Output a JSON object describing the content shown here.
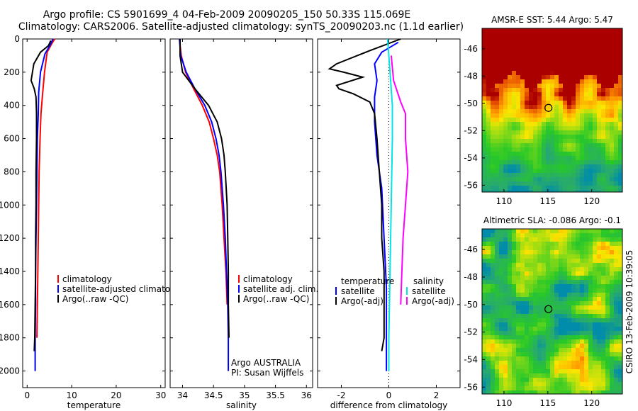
{
  "header": {
    "line1": "Argo profile: CS 5901699_4 04-Feb-2009 20090205_150 50.33S 115.069E",
    "line2": "Climatology: CARS2006. Satellite-adjusted climatology: synTS_20090203.nc (1.1d earlier)"
  },
  "side_label": "CSIRO 13-Feb-2009 10:39:05",
  "argo_note": {
    "line1": "Argo AUSTRALIA",
    "line2": "PI: Susan Wijffels"
  },
  "colors": {
    "climatology": "#ff0000",
    "satellite": "#0000ff",
    "argo": "#000000",
    "sat_salinity": "#00e5e5",
    "argo_salinity": "#ff00ff"
  },
  "chart_data": [
    {
      "type": "line",
      "id": "temperature",
      "xlabel": "temperature",
      "xlim": [
        -1,
        31
      ],
      "ylim": [
        0,
        2100
      ],
      "y_reversed": true,
      "xticks": [
        0,
        10,
        20,
        30
      ],
      "yticks": [
        0,
        200,
        400,
        600,
        800,
        1000,
        1200,
        1400,
        1600,
        1800,
        2000
      ],
      "legend": [
        "climatology",
        "satellite-adjusted climatology",
        "Argo(..raw -QC)"
      ],
      "series": [
        {
          "name": "climatology",
          "color": "#ff0000",
          "points": [
            [
              6.2,
              0
            ],
            [
              5.5,
              30
            ],
            [
              4.5,
              80
            ],
            [
              3.9,
              200
            ],
            [
              3.5,
              320
            ],
            [
              3.1,
              450
            ],
            [
              2.9,
              600
            ],
            [
              2.7,
              800
            ],
            [
              2.6,
              1000
            ],
            [
              2.5,
              1200
            ],
            [
              2.4,
              1400
            ],
            [
              2.3,
              1600
            ],
            [
              2.2,
              1800
            ]
          ]
        },
        {
          "name": "satellite-adjusted climatology",
          "color": "#0000ff",
          "points": [
            [
              5.8,
              0
            ],
            [
              5.3,
              30
            ],
            [
              4.0,
              90
            ],
            [
              3.0,
              200
            ],
            [
              2.6,
              320
            ],
            [
              2.5,
              450
            ],
            [
              2.3,
              600
            ],
            [
              2.2,
              800
            ],
            [
              2.1,
              1000
            ],
            [
              2.0,
              1200
            ],
            [
              1.9,
              1400
            ],
            [
              1.9,
              1600
            ],
            [
              1.8,
              1800
            ],
            [
              1.8,
              2000
            ]
          ]
        },
        {
          "name": "Argo(..raw -QC)",
          "color": "#000000",
          "points": [
            [
              5.3,
              10
            ],
            [
              4.8,
              40
            ],
            [
              3.0,
              80
            ],
            [
              1.5,
              150
            ],
            [
              0.9,
              250
            ],
            [
              1.6,
              300
            ],
            [
              2.0,
              350
            ],
            [
              2.1,
              450
            ],
            [
              2.1,
              600
            ],
            [
              2.0,
              800
            ],
            [
              2.0,
              1000
            ],
            [
              1.9,
              1200
            ],
            [
              1.9,
              1400
            ],
            [
              1.8,
              1600
            ],
            [
              1.7,
              1800
            ],
            [
              1.6,
              1880
            ]
          ]
        }
      ]
    },
    {
      "type": "line",
      "id": "salinity",
      "xlabel": "salinity",
      "xlim": [
        33.8,
        36.1
      ],
      "ylim": [
        0,
        2100
      ],
      "y_reversed": true,
      "xticks": [
        34,
        34.5,
        35,
        35.5,
        36
      ],
      "legend": [
        "climatology",
        "satellite adj. clim.",
        "Argo(..raw -QC)"
      ],
      "series": [
        {
          "name": "climatology",
          "color": "#ff0000",
          "points": [
            [
              33.95,
              0
            ],
            [
              33.98,
              100
            ],
            [
              34.05,
              200
            ],
            [
              34.18,
              300
            ],
            [
              34.32,
              400
            ],
            [
              34.43,
              500
            ],
            [
              34.5,
              600
            ],
            [
              34.56,
              700
            ],
            [
              34.6,
              800
            ],
            [
              34.64,
              1000
            ],
            [
              34.67,
              1200
            ],
            [
              34.7,
              1400
            ],
            [
              34.72,
              1600
            ]
          ]
        },
        {
          "name": "satellite adj. clim.",
          "color": "#0000ff",
          "points": [
            [
              33.95,
              0
            ],
            [
              33.97,
              100
            ],
            [
              34.06,
              200
            ],
            [
              34.2,
              300
            ],
            [
              34.36,
              400
            ],
            [
              34.47,
              500
            ],
            [
              34.54,
              600
            ],
            [
              34.59,
              700
            ],
            [
              34.62,
              800
            ],
            [
              34.66,
              1000
            ],
            [
              34.69,
              1200
            ],
            [
              34.71,
              1400
            ],
            [
              34.73,
              1600
            ],
            [
              34.74,
              1800
            ],
            [
              34.74,
              2000
            ]
          ]
        },
        {
          "name": "Argo(..raw -QC)",
          "color": "#000000",
          "points": [
            [
              33.96,
              0
            ],
            [
              33.96,
              100
            ],
            [
              34.0,
              200
            ],
            [
              34.2,
              300
            ],
            [
              34.42,
              400
            ],
            [
              34.56,
              500
            ],
            [
              34.63,
              600
            ],
            [
              34.67,
              700
            ],
            [
              34.69,
              800
            ],
            [
              34.72,
              1000
            ],
            [
              34.73,
              1200
            ],
            [
              34.74,
              1400
            ],
            [
              34.74,
              1600
            ],
            [
              34.75,
              1800
            ]
          ]
        }
      ]
    },
    {
      "type": "line",
      "id": "difference",
      "xlabel": "difference from climatology",
      "xlim": [
        -3,
        3
      ],
      "ylim": [
        0,
        2100
      ],
      "y_reversed": true,
      "xticks": [
        -2,
        0,
        2
      ],
      "legend": [
        "temperature",
        "satellite",
        "Argo(-adj)",
        "salinity",
        "satellite",
        "Argo(-adj)"
      ],
      "series": [
        {
          "name": "temperature satellite",
          "color": "#0000ff",
          "points": [
            [
              0.4,
              20
            ],
            [
              -0.3,
              80
            ],
            [
              -0.6,
              150
            ],
            [
              -0.5,
              250
            ],
            [
              -0.6,
              350
            ],
            [
              -0.6,
              500
            ],
            [
              -0.5,
              700
            ],
            [
              -0.3,
              900
            ],
            [
              -0.2,
              1200
            ],
            [
              -0.1,
              1500
            ],
            [
              -0.1,
              1800
            ],
            [
              -0.1,
              2000
            ]
          ]
        },
        {
          "name": "temperature Argo(-adj)",
          "color": "#000000",
          "points": [
            [
              0.5,
              0
            ],
            [
              -0.8,
              70
            ],
            [
              -2.2,
              150
            ],
            [
              -2.5,
              180
            ],
            [
              -1.9,
              200
            ],
            [
              -1.1,
              230
            ],
            [
              -2.2,
              280
            ],
            [
              -2.1,
              300
            ],
            [
              -1.5,
              330
            ],
            [
              -0.8,
              380
            ],
            [
              -0.6,
              450
            ],
            [
              -0.5,
              600
            ],
            [
              -0.4,
              800
            ],
            [
              -0.3,
              1000
            ],
            [
              -0.3,
              1200
            ],
            [
              -0.2,
              1400
            ],
            [
              -0.2,
              1600
            ],
            [
              -0.2,
              1800
            ],
            [
              -0.3,
              1880
            ]
          ]
        },
        {
          "name": "salinity satellite",
          "color": "#00e5e5",
          "points": [
            [
              -0.05,
              0
            ],
            [
              0.05,
              200
            ],
            [
              0.15,
              400
            ],
            [
              0.15,
              600
            ],
            [
              0.1,
              1000
            ],
            [
              0.05,
              1400
            ],
            [
              0.0,
              1800
            ],
            [
              0.0,
              2000
            ]
          ]
        },
        {
          "name": "salinity Argo(-adj)",
          "color": "#ff00ff",
          "points": [
            [
              0.1,
              100
            ],
            [
              0.2,
              250
            ],
            [
              0.5,
              380
            ],
            [
              0.7,
              450
            ],
            [
              0.7,
              600
            ],
            [
              0.8,
              800
            ],
            [
              0.7,
              1000
            ],
            [
              0.6,
              1200
            ],
            [
              0.55,
              1400
            ],
            [
              0.5,
              1600
            ]
          ]
        }
      ]
    },
    {
      "type": "heatmap",
      "id": "sst",
      "title": "AMSR-E SST: 5.44 Argo: 5.47",
      "xlim": [
        107.5,
        123.5
      ],
      "ylim": [
        -56.5,
        -44.5
      ],
      "xticks": [
        110,
        115,
        120
      ],
      "yticks": [
        -46,
        -48,
        -50,
        -52,
        -54,
        -56
      ],
      "marker": [
        115.069,
        -50.33
      ]
    },
    {
      "type": "heatmap",
      "id": "sla",
      "title": "Altimetric SLA: -0.086 Argo: -0.1",
      "xlim": [
        107.5,
        123.5
      ],
      "ylim": [
        -56.5,
        -44.5
      ],
      "xticks": [
        110,
        115,
        120
      ],
      "yticks": [
        -46,
        -48,
        -50,
        -52,
        -54,
        -56
      ],
      "marker": [
        115.069,
        -50.33
      ]
    }
  ]
}
